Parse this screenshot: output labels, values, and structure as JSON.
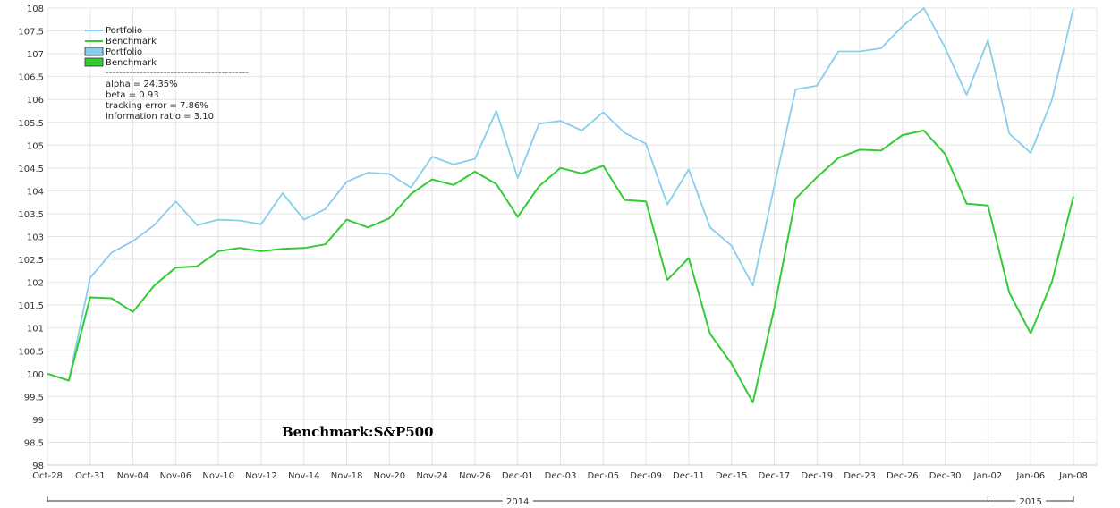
{
  "chart_data": {
    "type": "line",
    "x": [
      "Oct-28",
      "Oct-30",
      "Oct-31",
      "Nov-03",
      "Nov-04",
      "Nov-05",
      "Nov-06",
      "Nov-07",
      "Nov-10",
      "Nov-11",
      "Nov-12",
      "Nov-13",
      "Nov-14",
      "Nov-17",
      "Nov-18",
      "Nov-19",
      "Nov-20",
      "Nov-21",
      "Nov-24",
      "Nov-25",
      "Nov-26",
      "Nov-28",
      "Dec-01",
      "Dec-02",
      "Dec-03",
      "Dec-04",
      "Dec-05",
      "Dec-08",
      "Dec-09",
      "Dec-10",
      "Dec-11",
      "Dec-12",
      "Dec-15",
      "Dec-16",
      "Dec-17",
      "Dec-18",
      "Dec-19",
      "Dec-22",
      "Dec-23",
      "Dec-24",
      "Dec-26",
      "Dec-29",
      "Dec-30",
      "Dec-31",
      "Jan-02",
      "Jan-05",
      "Jan-06",
      "Jan-07",
      "Jan-08"
    ],
    "x_tick_labels": [
      "Oct-28",
      "Oct-31",
      "Nov-04",
      "Nov-06",
      "Nov-10",
      "Nov-12",
      "Nov-14",
      "Nov-18",
      "Nov-20",
      "Nov-24",
      "Nov-26",
      "Dec-01",
      "Dec-03",
      "Dec-05",
      "Dec-09",
      "Dec-11",
      "Dec-15",
      "Dec-17",
      "Dec-19",
      "Dec-23",
      "Dec-26",
      "Dec-30",
      "Jan-02",
      "Jan-06",
      "Jan-08"
    ],
    "series": [
      {
        "name": "Portfolio",
        "color": "#87ceeb",
        "values": [
          100.0,
          99.85,
          102.1,
          102.65,
          102.9,
          103.25,
          103.77,
          103.25,
          103.37,
          103.35,
          103.27,
          103.95,
          103.37,
          103.6,
          104.2,
          104.4,
          104.37,
          104.07,
          104.75,
          104.58,
          104.7,
          105.75,
          104.28,
          105.47,
          105.53,
          105.32,
          105.72,
          105.27,
          105.03,
          103.7,
          104.47,
          103.2,
          102.8,
          101.93,
          104.1,
          106.22,
          106.3,
          107.05,
          107.05,
          107.12,
          107.6,
          108.0,
          107.13,
          106.1,
          107.3,
          105.25,
          104.83,
          106.0,
          108.0
        ]
      },
      {
        "name": "Benchmark",
        "color": "#33cc33",
        "values": [
          100.0,
          99.85,
          101.67,
          101.65,
          101.35,
          101.93,
          102.32,
          102.35,
          102.68,
          102.75,
          102.68,
          102.73,
          102.75,
          102.83,
          103.37,
          103.2,
          103.4,
          103.93,
          104.25,
          104.13,
          104.42,
          104.15,
          103.43,
          104.1,
          104.5,
          104.38,
          104.55,
          103.8,
          103.77,
          102.05,
          102.53,
          100.87,
          100.22,
          99.37,
          101.43,
          103.83,
          104.3,
          104.72,
          104.9,
          104.88,
          105.22,
          105.32,
          104.8,
          103.72,
          103.68,
          101.77,
          100.88,
          102.02,
          103.88
        ]
      }
    ],
    "legend_entries": [
      "Portfolio",
      "Benchmark",
      "Portfolio",
      "Benchmark"
    ],
    "legend_placement": "top-left",
    "stats": [
      "alpha = 24.35%",
      "beta = 0.93",
      "tracking error = 7.86%",
      "information ratio = 3.10"
    ],
    "stats_separator": "------------------------------------------",
    "annotation": "Benchmark:S&P500",
    "periods": [
      "2014",
      "2015"
    ],
    "period_split_after": "Jan-02",
    "ylim": [
      98,
      108
    ],
    "y_ticks": [
      98,
      98.5,
      99,
      99.5,
      100,
      100.5,
      101,
      101.5,
      102,
      102.5,
      103,
      103.5,
      104,
      104.5,
      105,
      105.5,
      106,
      106.5,
      107,
      107.5,
      108
    ],
    "grid": true,
    "title": "",
    "xlabel": "",
    "ylabel": ""
  }
}
